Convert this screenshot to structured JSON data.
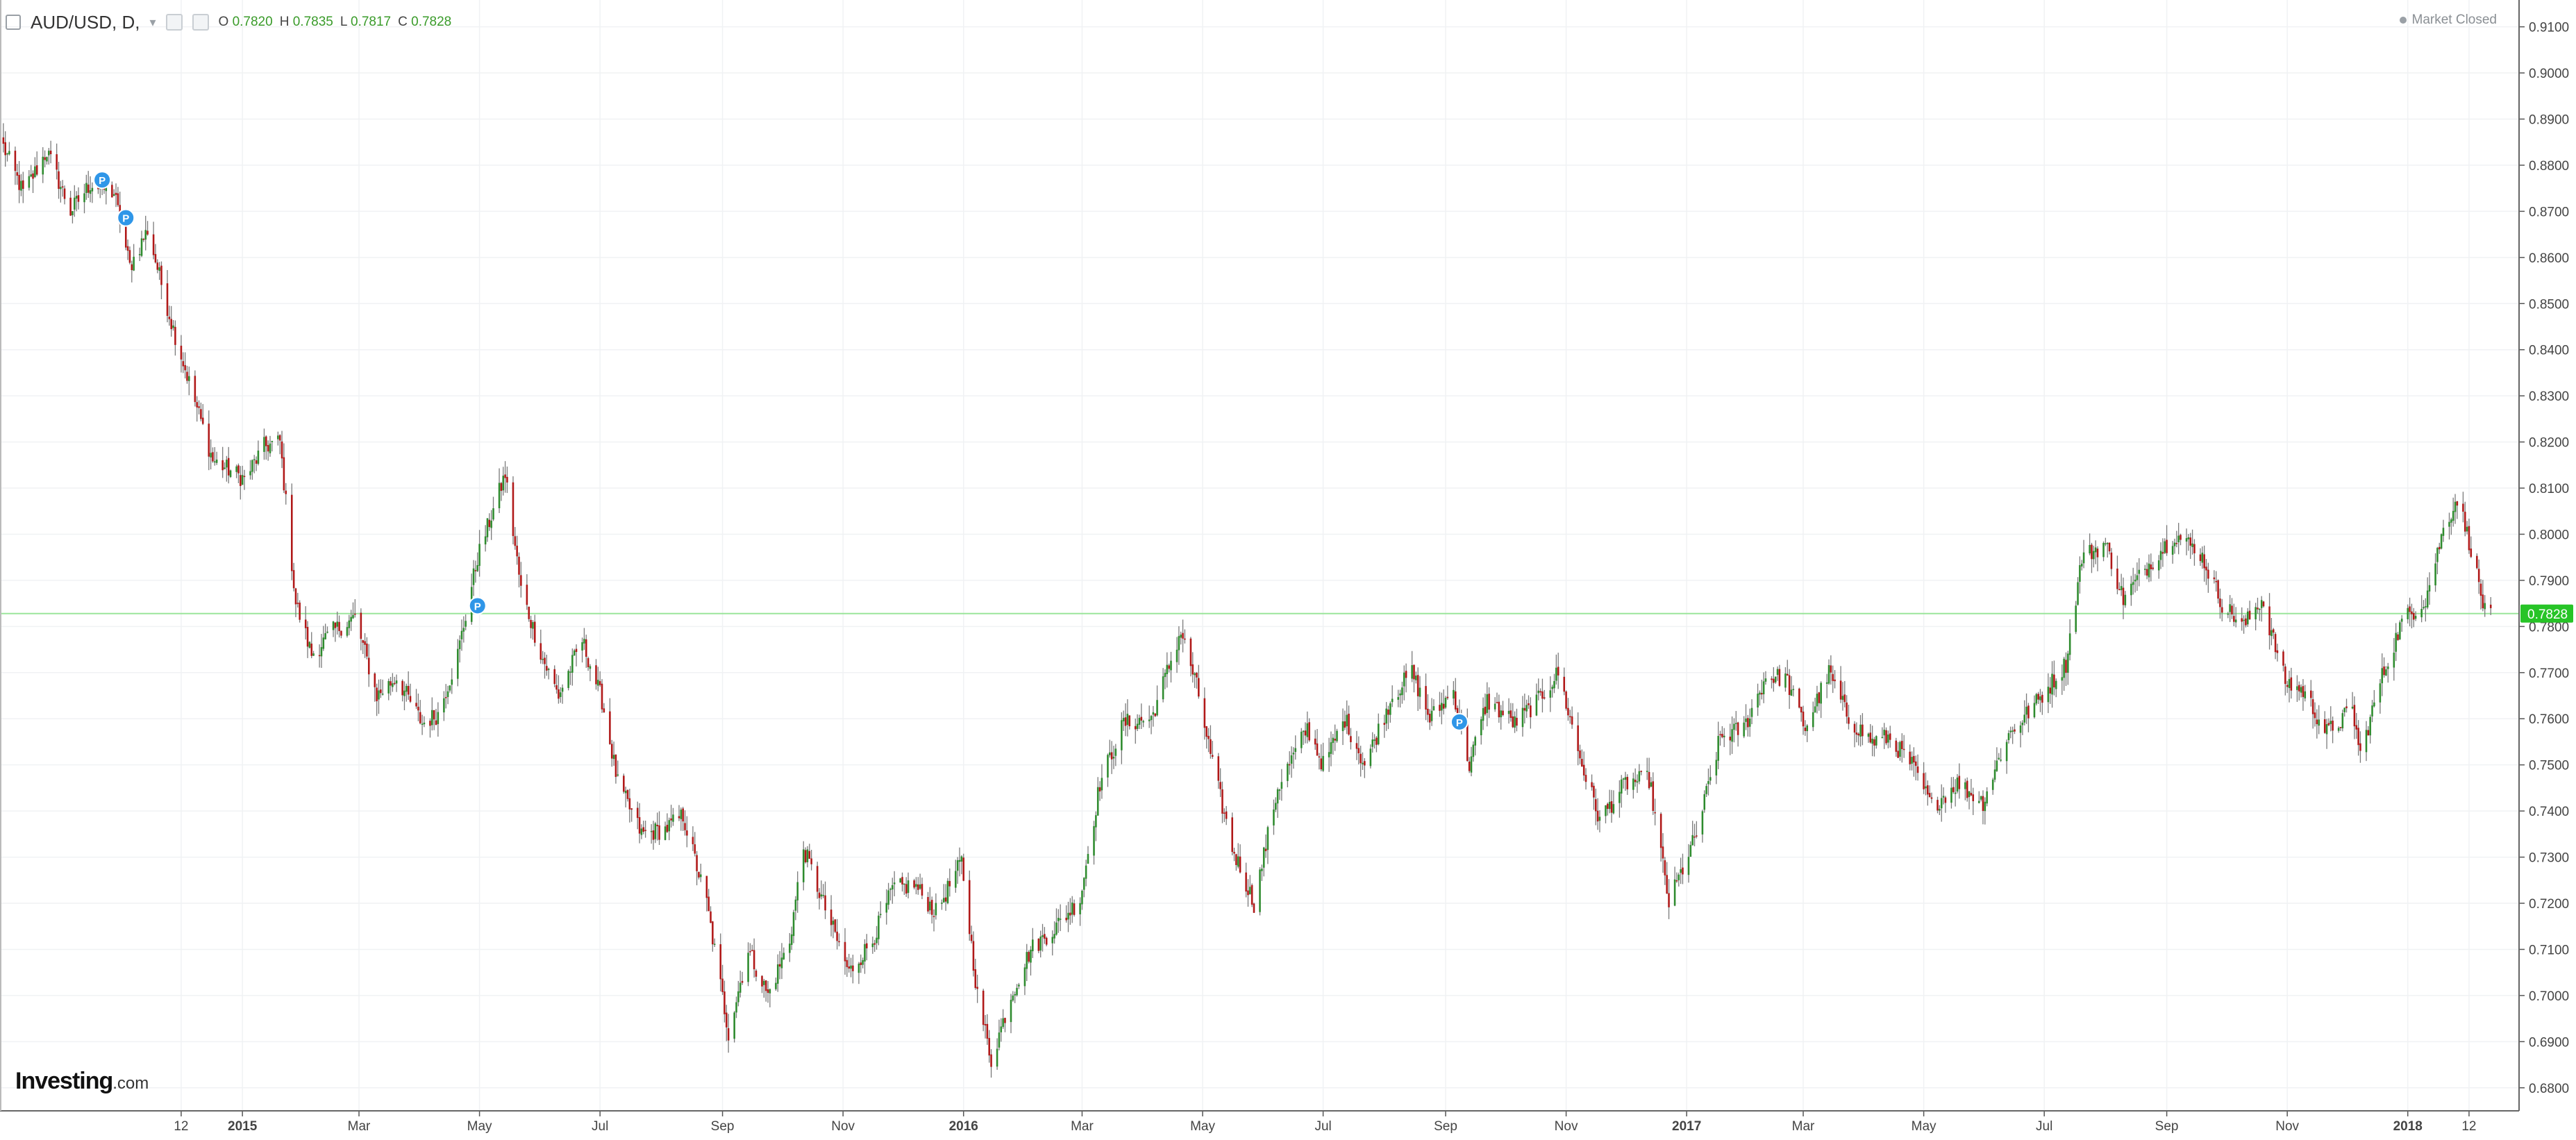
{
  "header": {
    "symbol": "AUD/USD, D,",
    "ohlc": [
      {
        "k": "O",
        "v": "0.7820"
      },
      {
        "k": "H",
        "v": "0.7835"
      },
      {
        "k": "L",
        "v": "0.7817"
      },
      {
        "k": "C",
        "v": "0.7828"
      }
    ],
    "market_status": "Market Closed"
  },
  "logo": {
    "main": "Investing",
    "suffix": ".com"
  },
  "colors": {
    "up": "#2e8b2e",
    "down": "#b01818",
    "wick": "#7a7a7a",
    "price_line": "#9be59b",
    "price_tag": "#27c427",
    "marker": "#2f96e8"
  },
  "chart_data": {
    "type": "candlestick",
    "symbol": "AUD/USD",
    "timeframe": "D",
    "ylim": [
      0.675,
      0.9125
    ],
    "y_ticks": [
      "0.6800",
      "0.6900",
      "0.7000",
      "0.7100",
      "0.7200",
      "0.7300",
      "0.7400",
      "0.7500",
      "0.7600",
      "0.7700",
      "0.7800",
      "0.7900",
      "0.8000",
      "0.8100",
      "0.8200",
      "0.8300",
      "0.8400",
      "0.8500",
      "0.8600",
      "0.8700",
      "0.8800",
      "0.8900",
      "0.9000",
      "0.9100"
    ],
    "x_labels": [
      {
        "label": "12",
        "date": "2014-12-01",
        "bold": false
      },
      {
        "label": "2015",
        "date": "2015-01-01",
        "bold": true
      },
      {
        "label": "Mar",
        "date": "2015-03-01",
        "bold": false
      },
      {
        "label": "May",
        "date": "2015-05-01",
        "bold": false
      },
      {
        "label": "Jul",
        "date": "2015-07-01",
        "bold": false
      },
      {
        "label": "Sep",
        "date": "2015-09-01",
        "bold": false
      },
      {
        "label": "Nov",
        "date": "2015-11-01",
        "bold": false
      },
      {
        "label": "2016",
        "date": "2016-01-01",
        "bold": true
      },
      {
        "label": "Mar",
        "date": "2016-03-01",
        "bold": false
      },
      {
        "label": "May",
        "date": "2016-05-01",
        "bold": false
      },
      {
        "label": "Jul",
        "date": "2016-07-01",
        "bold": false
      },
      {
        "label": "Sep",
        "date": "2016-09-01",
        "bold": false
      },
      {
        "label": "Nov",
        "date": "2016-11-01",
        "bold": false
      },
      {
        "label": "2017",
        "date": "2017-01-01",
        "bold": true
      },
      {
        "label": "Mar",
        "date": "2017-03-01",
        "bold": false
      },
      {
        "label": "May",
        "date": "2017-05-01",
        "bold": false
      },
      {
        "label": "Jul",
        "date": "2017-07-01",
        "bold": false
      },
      {
        "label": "Sep",
        "date": "2017-09-01",
        "bold": false
      },
      {
        "label": "Nov",
        "date": "2017-11-01",
        "bold": false
      },
      {
        "label": "2018",
        "date": "2018-01-01",
        "bold": true
      },
      {
        "label": "12",
        "date": "2018-02-01",
        "bold": false
      }
    ],
    "close_path": [
      [
        "2014-09-02",
        0.884
      ],
      [
        "2014-09-12",
        0.874
      ],
      [
        "2014-09-24",
        0.883
      ],
      [
        "2014-10-06",
        0.87
      ],
      [
        "2014-10-16",
        0.876
      ],
      [
        "2014-10-28",
        0.874
      ],
      [
        "2014-11-05",
        0.858
      ],
      [
        "2014-11-14",
        0.866
      ],
      [
        "2014-11-26",
        0.846
      ],
      [
        "2014-12-05",
        0.833
      ],
      [
        "2014-12-17",
        0.816
      ],
      [
        "2015-01-02",
        0.812
      ],
      [
        "2015-01-12",
        0.819
      ],
      [
        "2015-01-20",
        0.82
      ],
      [
        "2015-01-28",
        0.785
      ],
      [
        "2015-02-05",
        0.774
      ],
      [
        "2015-02-16",
        0.779
      ],
      [
        "2015-02-27",
        0.782
      ],
      [
        "2015-03-10",
        0.765
      ],
      [
        "2015-03-20",
        0.769
      ],
      [
        "2015-04-02",
        0.759
      ],
      [
        "2015-04-10",
        0.761
      ],
      [
        "2015-04-20",
        0.774
      ],
      [
        "2015-04-30",
        0.795
      ],
      [
        "2015-05-14",
        0.813
      ],
      [
        "2015-05-22",
        0.788
      ],
      [
        "2015-06-02",
        0.773
      ],
      [
        "2015-06-10",
        0.765
      ],
      [
        "2015-06-22",
        0.777
      ],
      [
        "2015-07-02",
        0.764
      ],
      [
        "2015-07-10",
        0.746
      ],
      [
        "2015-07-22",
        0.735
      ],
      [
        "2015-08-03",
        0.736
      ],
      [
        "2015-08-12",
        0.739
      ],
      [
        "2015-08-24",
        0.72
      ],
      [
        "2015-09-04",
        0.692
      ],
      [
        "2015-09-14",
        0.71
      ],
      [
        "2015-09-24",
        0.7
      ],
      [
        "2015-10-05",
        0.712
      ],
      [
        "2015-10-12",
        0.732
      ],
      [
        "2015-10-22",
        0.72
      ],
      [
        "2015-11-04",
        0.705
      ],
      [
        "2015-11-16",
        0.712
      ],
      [
        "2015-11-26",
        0.723
      ],
      [
        "2015-12-07",
        0.724
      ],
      [
        "2015-12-18",
        0.718
      ],
      [
        "2015-12-31",
        0.729
      ],
      [
        "2016-01-08",
        0.7
      ],
      [
        "2016-01-15",
        0.686
      ],
      [
        "2016-01-25",
        0.7
      ],
      [
        "2016-02-04",
        0.71
      ],
      [
        "2016-02-17",
        0.715
      ],
      [
        "2016-02-29",
        0.721
      ],
      [
        "2016-03-10",
        0.746
      ],
      [
        "2016-03-22",
        0.759
      ],
      [
        "2016-04-05",
        0.76
      ],
      [
        "2016-04-20",
        0.779
      ],
      [
        "2016-04-28",
        0.767
      ],
      [
        "2016-05-06",
        0.75
      ],
      [
        "2016-05-16",
        0.732
      ],
      [
        "2016-05-27",
        0.72
      ],
      [
        "2016-06-08",
        0.745
      ],
      [
        "2016-06-23",
        0.758
      ],
      [
        "2016-07-01",
        0.75
      ],
      [
        "2016-07-12",
        0.76
      ],
      [
        "2016-07-22",
        0.75
      ],
      [
        "2016-08-05",
        0.765
      ],
      [
        "2016-08-15",
        0.77
      ],
      [
        "2016-08-24",
        0.76
      ],
      [
        "2016-09-05",
        0.766
      ],
      [
        "2016-09-13",
        0.75
      ],
      [
        "2016-09-22",
        0.764
      ],
      [
        "2016-10-06",
        0.759
      ],
      [
        "2016-10-18",
        0.764
      ],
      [
        "2016-10-28",
        0.77
      ],
      [
        "2016-11-09",
        0.75
      ],
      [
        "2016-11-18",
        0.738
      ],
      [
        "2016-12-01",
        0.746
      ],
      [
        "2016-12-13",
        0.747
      ],
      [
        "2016-12-23",
        0.72
      ],
      [
        "2017-01-06",
        0.735
      ],
      [
        "2017-01-18",
        0.756
      ],
      [
        "2017-01-30",
        0.758
      ],
      [
        "2017-02-10",
        0.769
      ],
      [
        "2017-02-20",
        0.769
      ],
      [
        "2017-03-02",
        0.758
      ],
      [
        "2017-03-14",
        0.77
      ],
      [
        "2017-03-24",
        0.76
      ],
      [
        "2017-04-05",
        0.755
      ],
      [
        "2017-04-13",
        0.756
      ],
      [
        "2017-04-25",
        0.75
      ],
      [
        "2017-05-05",
        0.741
      ],
      [
        "2017-05-18",
        0.746
      ],
      [
        "2017-05-31",
        0.742
      ],
      [
        "2017-06-12",
        0.756
      ],
      [
        "2017-06-28",
        0.764
      ],
      [
        "2017-07-12",
        0.772
      ],
      [
        "2017-07-20",
        0.795
      ],
      [
        "2017-08-01",
        0.798
      ],
      [
        "2017-08-10",
        0.786
      ],
      [
        "2017-08-22",
        0.793
      ],
      [
        "2017-09-05",
        0.8
      ],
      [
        "2017-09-18",
        0.796
      ],
      [
        "2017-09-29",
        0.785
      ],
      [
        "2017-10-10",
        0.78
      ],
      [
        "2017-10-19",
        0.786
      ],
      [
        "2017-10-31",
        0.768
      ],
      [
        "2017-11-09",
        0.766
      ],
      [
        "2017-11-21",
        0.757
      ],
      [
        "2017-12-04",
        0.762
      ],
      [
        "2017-12-08",
        0.752
      ],
      [
        "2017-12-18",
        0.768
      ],
      [
        "2017-12-29",
        0.781
      ],
      [
        "2018-01-10",
        0.786
      ],
      [
        "2018-01-19",
        0.801
      ],
      [
        "2018-01-26",
        0.808
      ],
      [
        "2018-02-02",
        0.797
      ],
      [
        "2018-02-09",
        0.783
      ],
      [
        "2018-02-12",
        0.7828
      ]
    ],
    "last_price": "0.7828",
    "event_markers": [
      {
        "date": "2014-10-22",
        "price": 0.8768,
        "label": "P"
      },
      {
        "date": "2014-11-03",
        "price": 0.8686,
        "label": "P"
      },
      {
        "date": "2015-04-30",
        "price": 0.7845,
        "label": "P"
      },
      {
        "date": "2016-09-08",
        "price": 0.7593,
        "label": "P"
      }
    ],
    "grid": true,
    "legend": "none"
  }
}
